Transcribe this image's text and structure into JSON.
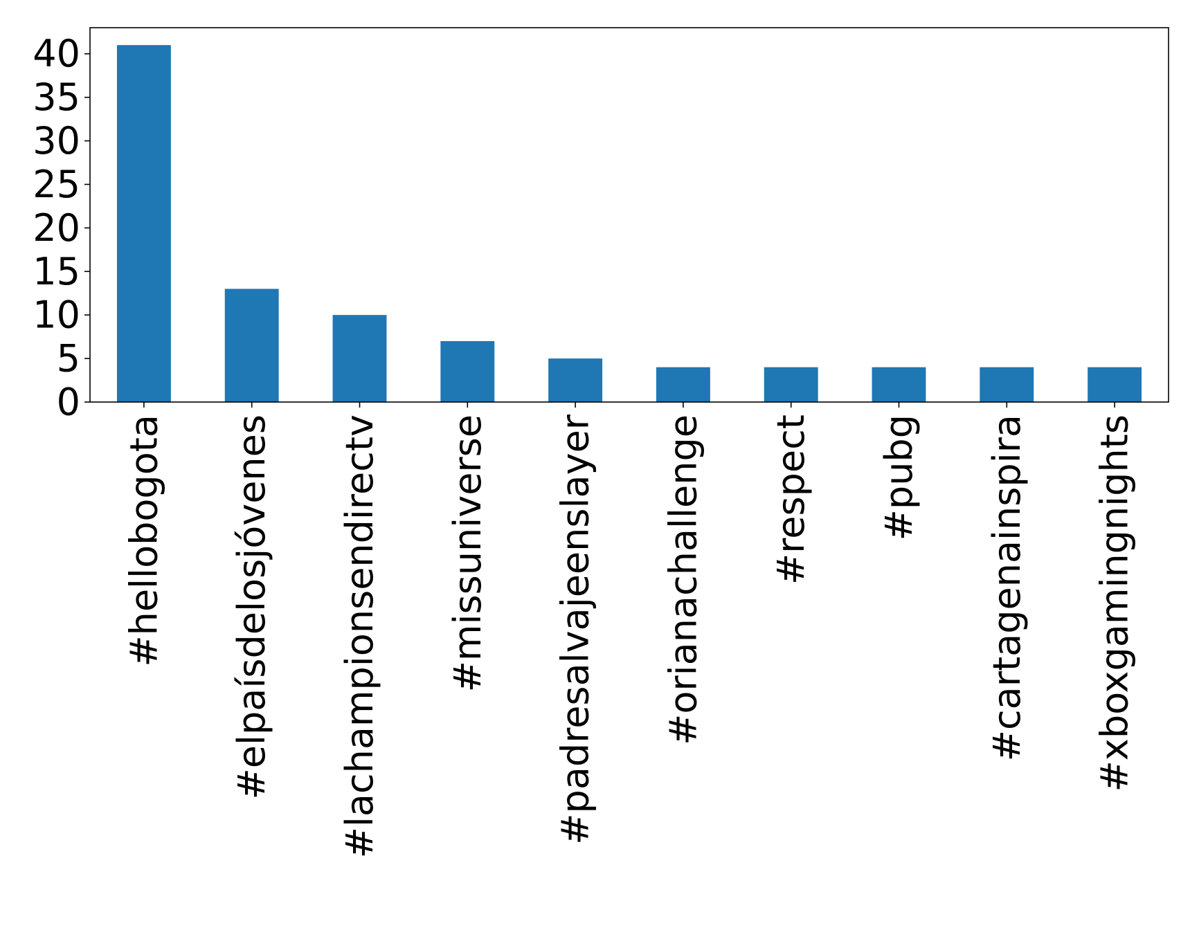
{
  "chart_data": {
    "type": "bar",
    "title": "",
    "xlabel": "",
    "ylabel": "",
    "categories": [
      "#hellobogota",
      "#elpaísdelosjóvenes",
      "#lachampionsendirectv",
      "#missuniverse",
      "#padresalvajeenslayer",
      "#orianachallenge",
      "#respect",
      "#pubg",
      "#cartagenainspira",
      "#xboxgamingnights"
    ],
    "values": [
      41,
      13,
      10,
      7,
      5,
      4,
      4,
      4,
      4,
      4
    ],
    "ylim": [
      0,
      43
    ],
    "yticks": [
      0,
      5,
      10,
      15,
      20,
      25,
      30,
      35,
      40
    ],
    "grid": false,
    "legend": "none",
    "bar_color": "#1f77b4"
  }
}
